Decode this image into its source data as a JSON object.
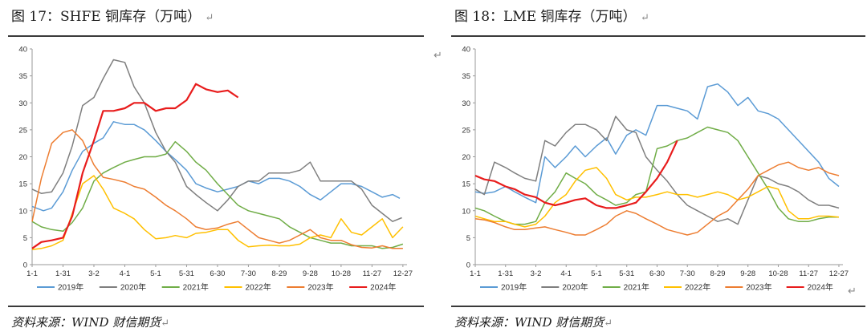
{
  "charts": [
    {
      "title": "图 17：SHFE 铜库存（万吨）",
      "source": "资料来源：WIND  财信期货"
    },
    {
      "title": "图 18：LME 铜库存（万吨）",
      "source": "资料来源：WIND  财信期货"
    }
  ],
  "return_mark": "↵",
  "chart_data": [
    {
      "type": "line",
      "title": "图 17：SHFE 铜库存（万吨）",
      "ylim": [
        0,
        40
      ],
      "yticks": [
        0,
        5,
        10,
        15,
        20,
        25,
        30,
        35,
        40
      ],
      "xlim": [
        1,
        365
      ],
      "xticks": [
        {
          "label": "1-1",
          "day": 1
        },
        {
          "label": "1-31",
          "day": 31
        },
        {
          "label": "3-2",
          "day": 61
        },
        {
          "label": "4-1",
          "day": 91
        },
        {
          "label": "5-1",
          "day": 121
        },
        {
          "label": "5-31",
          "day": 151
        },
        {
          "label": "6-30",
          "day": 181
        },
        {
          "label": "7-30",
          "day": 211
        },
        {
          "label": "8-29",
          "day": 241
        },
        {
          "label": "9-28",
          "day": 271
        },
        {
          "label": "10-28",
          "day": 301
        },
        {
          "label": "11-27",
          "day": 331
        },
        {
          "label": "12-27",
          "day": 361
        }
      ],
      "legend_position": "bottom",
      "series": [
        {
          "name": "2019年",
          "color": "#5b9bd5",
          "x": [
            1,
            12,
            20,
            31,
            40,
            50,
            61,
            70,
            80,
            91,
            100,
            110,
            121,
            131,
            140,
            151,
            160,
            170,
            181,
            191,
            201,
            211,
            221,
            231,
            241,
            251,
            261,
            271,
            281,
            291,
            301,
            311,
            321,
            331,
            341,
            351,
            358
          ],
          "y": [
            10.8,
            10,
            10.5,
            13.5,
            17.5,
            21,
            22.5,
            23.5,
            26.5,
            26,
            26,
            25,
            23,
            21,
            19.5,
            17.5,
            15,
            14.2,
            13.5,
            14,
            14.5,
            15.5,
            15,
            16,
            16,
            15.5,
            14.5,
            13,
            12,
            13.5,
            15,
            15,
            14.5,
            13.5,
            12.5,
            13,
            12.3
          ]
        },
        {
          "name": "2020年",
          "color": "#7f7f7f",
          "x": [
            1,
            10,
            20,
            31,
            40,
            50,
            61,
            70,
            80,
            91,
            100,
            110,
            121,
            131,
            140,
            151,
            160,
            170,
            181,
            191,
            201,
            211,
            221,
            231,
            241,
            251,
            261,
            271,
            281,
            291,
            301,
            311,
            321,
            331,
            341,
            351,
            360
          ],
          "y": [
            14,
            13.2,
            13.5,
            17,
            22,
            29.5,
            31,
            34.5,
            38,
            37.5,
            33,
            30,
            24.5,
            21,
            19,
            14.5,
            13,
            11.5,
            10,
            12,
            14.5,
            15.5,
            15.5,
            17,
            17,
            17,
            17.5,
            19,
            15.5,
            15.5,
            15.5,
            15.5,
            14,
            11,
            9.5,
            8,
            8.7
          ]
        },
        {
          "name": "2021年",
          "color": "#70ad47",
          "x": [
            1,
            10,
            20,
            31,
            40,
            50,
            61,
            70,
            80,
            91,
            100,
            110,
            121,
            131,
            140,
            151,
            160,
            170,
            181,
            191,
            201,
            211,
            221,
            231,
            241,
            251,
            261,
            271,
            281,
            291,
            301,
            311,
            321,
            331,
            341,
            351,
            361
          ],
          "y": [
            8,
            7,
            6.5,
            6.2,
            7.8,
            10.5,
            15.5,
            17,
            18,
            19,
            19.5,
            20,
            20,
            20.5,
            22.8,
            21,
            19,
            17.5,
            15,
            13,
            11,
            10,
            9.5,
            9,
            8.5,
            7,
            6,
            5,
            4.5,
            4,
            4,
            3.5,
            3.5,
            3.5,
            3,
            3.2,
            3.8
          ]
        },
        {
          "name": "2022年",
          "color": "#ffc000",
          "x": [
            1,
            10,
            20,
            31,
            40,
            50,
            61,
            70,
            80,
            91,
            100,
            110,
            121,
            131,
            140,
            151,
            160,
            170,
            181,
            191,
            201,
            211,
            221,
            231,
            241,
            251,
            261,
            271,
            281,
            291,
            301,
            311,
            321,
            331,
            341,
            351,
            361
          ],
          "y": [
            2.8,
            3,
            3.5,
            4.5,
            9.5,
            15,
            16.5,
            14,
            10.5,
            9.5,
            8.5,
            6.5,
            4.8,
            5,
            5.4,
            5,
            5.8,
            6,
            6.5,
            6.5,
            4.5,
            3.3,
            3.5,
            3.6,
            3.5,
            3.5,
            3.8,
            5,
            5.5,
            5,
            8.5,
            6,
            5.5,
            7,
            8.5,
            5,
            7
          ]
        },
        {
          "name": "2023年",
          "color": "#ed7d31",
          "x": [
            1,
            10,
            20,
            31,
            40,
            50,
            61,
            70,
            80,
            91,
            100,
            110,
            121,
            131,
            140,
            151,
            160,
            170,
            181,
            191,
            201,
            211,
            221,
            231,
            241,
            251,
            261,
            271,
            281,
            291,
            301,
            311,
            321,
            331,
            341,
            351,
            361
          ],
          "y": [
            8,
            16,
            22.5,
            24.5,
            25,
            23,
            18.5,
            16.2,
            15.8,
            15.3,
            14.5,
            14,
            12.5,
            11,
            10,
            8.5,
            7,
            6.5,
            6.8,
            7.5,
            8,
            6.5,
            5,
            4.5,
            4,
            4.5,
            5.5,
            6.5,
            5,
            4.5,
            4.5,
            3.7,
            3.2,
            3.1,
            3.5,
            3,
            3
          ]
        },
        {
          "name": "2024年",
          "color": "#e81c1c",
          "x": [
            1,
            10,
            20,
            31,
            40,
            50,
            61,
            70,
            80,
            91,
            100,
            110,
            121,
            131,
            140,
            151,
            160,
            170,
            181,
            191,
            201
          ],
          "y": [
            3,
            4.2,
            4.5,
            5,
            9,
            17,
            23,
            28.5,
            28.5,
            29,
            30,
            30,
            28.5,
            29,
            29,
            30.5,
            33.5,
            32.5,
            32,
            32.3,
            31
          ]
        }
      ]
    },
    {
      "type": "line",
      "title": "图 18：LME 铜库存（万吨）",
      "ylim": [
        0,
        40
      ],
      "yticks": [
        0,
        5,
        10,
        15,
        20,
        25,
        30,
        35,
        40
      ],
      "xlim": [
        1,
        365
      ],
      "xticks": [
        {
          "label": "1-1",
          "day": 1
        },
        {
          "label": "1-31",
          "day": 31
        },
        {
          "label": "3-2",
          "day": 61
        },
        {
          "label": "4-1",
          "day": 91
        },
        {
          "label": "5-1",
          "day": 121
        },
        {
          "label": "5-31",
          "day": 151
        },
        {
          "label": "6-30",
          "day": 181
        },
        {
          "label": "7-30",
          "day": 211
        },
        {
          "label": "8-29",
          "day": 241
        },
        {
          "label": "9-28",
          "day": 271
        },
        {
          "label": "10-28",
          "day": 301
        },
        {
          "label": "11-27",
          "day": 331
        },
        {
          "label": "12-27",
          "day": 361
        }
      ],
      "legend_position": "bottom",
      "series": [
        {
          "name": "2019年",
          "color": "#5b9bd5",
          "x": [
            1,
            10,
            20,
            31,
            40,
            50,
            61,
            70,
            80,
            91,
            100,
            110,
            121,
            131,
            140,
            151,
            160,
            170,
            181,
            191,
            201,
            211,
            221,
            231,
            241,
            251,
            261,
            271,
            281,
            291,
            301,
            311,
            321,
            331,
            341,
            351,
            361
          ],
          "y": [
            13.5,
            13.2,
            13.5,
            14.5,
            13.5,
            12.5,
            11.5,
            20,
            18,
            20,
            22,
            20,
            22,
            23.5,
            20.5,
            24,
            25,
            24,
            29.5,
            29.5,
            29,
            28.5,
            27,
            33,
            33.5,
            32,
            29.5,
            31,
            28.5,
            28,
            27,
            25,
            23,
            21,
            19,
            16,
            14.5
          ]
        },
        {
          "name": "2020年",
          "color": "#7f7f7f",
          "x": [
            1,
            10,
            20,
            31,
            40,
            50,
            61,
            70,
            80,
            91,
            100,
            110,
            121,
            131,
            140,
            151,
            160,
            170,
            181,
            191,
            201,
            211,
            221,
            231,
            241,
            251,
            261,
            271,
            281,
            291,
            301,
            311,
            321,
            331,
            341,
            351,
            361
          ],
          "y": [
            14,
            13,
            19,
            18,
            17,
            16,
            15.5,
            23,
            22,
            24.5,
            26,
            26,
            25,
            23,
            27.5,
            25,
            24.5,
            20,
            17.5,
            15.5,
            13,
            11,
            10,
            9,
            8,
            8.5,
            7.5,
            12,
            16.5,
            16,
            15,
            14.5,
            13.5,
            12,
            11,
            11,
            10.5
          ]
        },
        {
          "name": "2021年",
          "color": "#70ad47",
          "x": [
            1,
            10,
            20,
            31,
            40,
            50,
            61,
            70,
            80,
            91,
            100,
            110,
            121,
            131,
            140,
            151,
            160,
            170,
            181,
            191,
            201,
            211,
            221,
            231,
            241,
            251,
            261,
            271,
            281,
            291,
            301,
            311,
            321,
            331,
            341,
            351,
            361
          ],
          "y": [
            10.5,
            10,
            9,
            8,
            7.5,
            7.5,
            8,
            11.5,
            13.5,
            17,
            16,
            15,
            13,
            12,
            11,
            11.5,
            13,
            13.5,
            21.5,
            22,
            23,
            23.5,
            24.5,
            25.5,
            25,
            24.5,
            23,
            20,
            17,
            14,
            10.5,
            8.5,
            8,
            8,
            8.5,
            8.8,
            8.8
          ]
        },
        {
          "name": "2022年",
          "color": "#ffc000",
          "x": [
            1,
            10,
            20,
            31,
            40,
            50,
            61,
            70,
            80,
            91,
            100,
            110,
            121,
            131,
            140,
            151,
            160,
            170,
            181,
            191,
            201,
            211,
            221,
            231,
            241,
            251,
            261,
            271,
            281,
            291,
            301,
            311,
            321,
            331,
            341,
            351,
            361
          ],
          "y": [
            9,
            8.5,
            8,
            8,
            7.5,
            7,
            7.5,
            9,
            11.5,
            13,
            15.5,
            17.5,
            18,
            16,
            13,
            12,
            12.5,
            12.5,
            13,
            13.5,
            13,
            13,
            12.5,
            13,
            13.5,
            13,
            12,
            12.5,
            13.5,
            14.5,
            14,
            10,
            8.5,
            8.5,
            9,
            9,
            8.8
          ]
        },
        {
          "name": "2023年",
          "color": "#ed7d31",
          "x": [
            1,
            10,
            20,
            31,
            40,
            50,
            61,
            70,
            80,
            91,
            100,
            110,
            121,
            131,
            140,
            151,
            160,
            170,
            181,
            191,
            201,
            211,
            221,
            231,
            241,
            251,
            261,
            271,
            281,
            291,
            301,
            311,
            321,
            331,
            341,
            351,
            361
          ],
          "y": [
            8.5,
            8.3,
            7.8,
            7,
            6.5,
            6.5,
            6.8,
            7,
            6.5,
            6,
            5.5,
            5.5,
            6.5,
            7.5,
            9,
            10,
            9.5,
            8.5,
            7.5,
            6.5,
            6,
            5.5,
            6,
            7.5,
            9,
            10,
            12,
            14,
            16.5,
            17.5,
            18.5,
            19,
            18,
            17.5,
            18,
            17,
            16.5
          ]
        },
        {
          "name": "2024年",
          "color": "#e81c1c",
          "x": [
            1,
            10,
            20,
            31,
            40,
            50,
            61,
            70,
            80,
            91,
            100,
            110,
            121,
            131,
            140,
            151,
            160,
            170,
            181,
            191,
            201
          ],
          "y": [
            16.5,
            15.8,
            15.5,
            14.5,
            14,
            13,
            12.5,
            11.5,
            11,
            11.5,
            12,
            12.3,
            11,
            10.5,
            10.5,
            11,
            11.5,
            13.5,
            16,
            19,
            23
          ]
        }
      ]
    }
  ]
}
